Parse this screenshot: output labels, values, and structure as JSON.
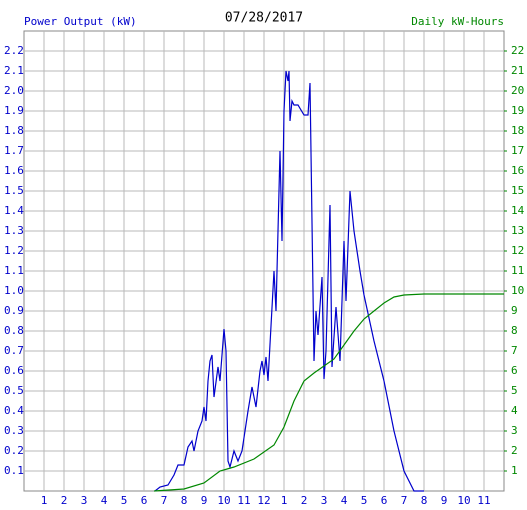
{
  "chart_data": {
    "type": "line",
    "title": "07/28/2017",
    "xlim": [
      0,
      24
    ],
    "xticks": [
      1,
      2,
      3,
      4,
      5,
      6,
      7,
      8,
      9,
      10,
      11,
      12,
      {
        "value": 13,
        "label": "1"
      },
      {
        "value": 14,
        "label": "2"
      },
      {
        "value": 15,
        "label": "3"
      },
      {
        "value": 16,
        "label": "4"
      },
      {
        "value": 17,
        "label": "5"
      },
      {
        "value": 18,
        "label": "6"
      },
      {
        "value": 19,
        "label": "7"
      },
      {
        "value": 20,
        "label": "8"
      },
      {
        "value": 21,
        "label": "9"
      },
      {
        "value": 22,
        "label": "10"
      },
      {
        "value": 23,
        "label": "11"
      }
    ],
    "ylim": [
      0,
      2.3
    ],
    "yticks": [
      0.1,
      0.2,
      0.3,
      0.4,
      0.5,
      0.6,
      0.7,
      0.8,
      0.9,
      {
        "value": 1,
        "label": "1.0"
      },
      1.1,
      1.2,
      1.3,
      1.4,
      1.5,
      1.6,
      1.7,
      1.8,
      1.9,
      {
        "value": 2,
        "label": "2.0"
      },
      2.1,
      2.2
    ],
    "y2lim": [
      0,
      23
    ],
    "y2ticks": [
      1,
      2,
      3,
      4,
      5,
      6,
      7,
      8,
      9,
      10,
      11,
      12,
      13,
      14,
      15,
      16,
      17,
      18,
      19,
      20,
      21,
      22
    ],
    "grid": true,
    "series": [
      {
        "name": "Power Output (kW)",
        "color": "#0000cc",
        "x": [
          6.55,
          6.8,
          7.2,
          7.5,
          7.7,
          8.0,
          8.2,
          8.4,
          8.5,
          8.7,
          8.9,
          9.0,
          9.1,
          9.2,
          9.3,
          9.4,
          9.5,
          9.7,
          9.8,
          10.0,
          10.1,
          10.2,
          10.3,
          10.5,
          10.7,
          10.9,
          11.2,
          11.4,
          11.6,
          11.8,
          11.9,
          12.0,
          12.1,
          12.2,
          12.5,
          12.6,
          12.8,
          12.9,
          13.0,
          13.1,
          13.2,
          13.25,
          13.3,
          13.4,
          13.5,
          13.7,
          14.0,
          14.2,
          14.3,
          14.5,
          14.6,
          14.7,
          14.9,
          15.0,
          15.1,
          15.3,
          15.4,
          15.6,
          15.8,
          16.0,
          16.1,
          16.3,
          16.5,
          16.8,
          17.0,
          17.5,
          18.0,
          18.5,
          19.0,
          19.5,
          20.0
        ],
        "values": [
          0,
          0.02,
          0.03,
          0.08,
          0.13,
          0.13,
          0.22,
          0.25,
          0.2,
          0.3,
          0.35,
          0.42,
          0.35,
          0.55,
          0.65,
          0.68,
          0.47,
          0.62,
          0.55,
          0.81,
          0.7,
          0.15,
          0.12,
          0.2,
          0.15,
          0.2,
          0.4,
          0.52,
          0.42,
          0.6,
          0.65,
          0.58,
          0.67,
          0.55,
          1.1,
          0.9,
          1.7,
          1.25,
          1.9,
          2.1,
          2.05,
          2.1,
          1.85,
          1.95,
          1.93,
          1.93,
          1.88,
          1.88,
          2.04,
          0.65,
          0.9,
          0.78,
          1.07,
          0.56,
          0.7,
          1.43,
          0.62,
          0.92,
          0.65,
          1.25,
          0.95,
          1.5,
          1.3,
          1.1,
          0.98,
          0.75,
          0.55,
          0.3,
          0.1,
          0,
          0
        ]
      },
      {
        "name": "Daily kW-Hours",
        "color": "#008800",
        "axis": "y2",
        "x": [
          6.5,
          8,
          9,
          9.8,
          10.5,
          11.5,
          12.5,
          13.0,
          13.5,
          14.0,
          14.5,
          15.5,
          16.0,
          16.5,
          17.0,
          17.5,
          18.0,
          18.5,
          19.0,
          20,
          24
        ],
        "values": [
          0,
          0.1,
          0.4,
          1.0,
          1.2,
          1.6,
          2.3,
          3.2,
          4.5,
          5.5,
          5.9,
          6.6,
          7.3,
          8.0,
          8.6,
          9.0,
          9.4,
          9.7,
          9.8,
          9.85,
          9.85
        ]
      }
    ]
  }
}
